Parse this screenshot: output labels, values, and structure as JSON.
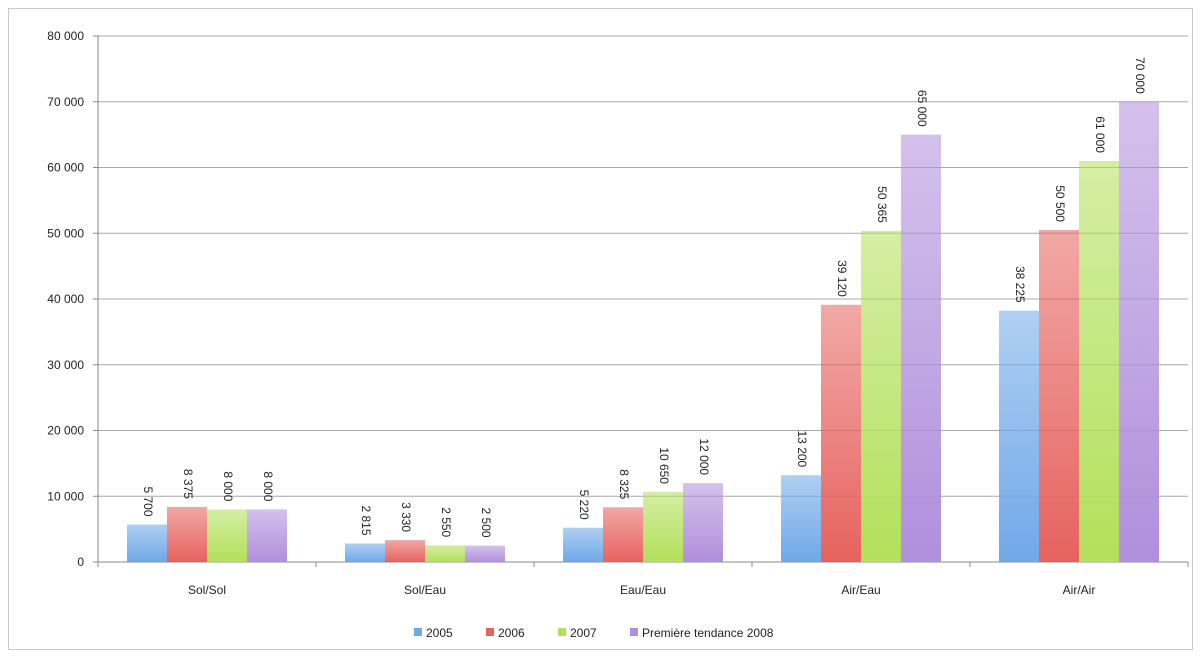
{
  "chart_data": {
    "type": "bar",
    "categories": [
      "Sol/Sol",
      "Sol/Eau",
      "Eau/Eau",
      "Air/Eau",
      "Air/Air"
    ],
    "series": [
      {
        "name": "2005",
        "values": [
          5700,
          2815,
          5220,
          13200,
          38225
        ],
        "labels": [
          "5 700",
          "2 815",
          "5 220",
          "13 200",
          "38 225"
        ],
        "color": "#6fa8e8"
      },
      {
        "name": "2006",
        "values": [
          8375,
          3330,
          8325,
          39120,
          50500
        ],
        "labels": [
          "8 375",
          "3 330",
          "8 325",
          "39 120",
          "50 500"
        ],
        "color": "#e6625e"
      },
      {
        "name": "2007",
        "values": [
          8000,
          2550,
          10650,
          50365,
          61000
        ],
        "labels": [
          "8 000",
          "2 550",
          "10 650",
          "50 365",
          "61 000"
        ],
        "color": "#b2e05a"
      },
      {
        "name": "Première tendance 2008",
        "values": [
          8000,
          2500,
          12000,
          65000,
          70000
        ],
        "labels": [
          "8 000",
          "2 500",
          "12 000",
          "65 000",
          "70 000"
        ],
        "color": "#b08fdc"
      }
    ],
    "y_ticks": [
      "0",
      "10 000",
      "20 000",
      "30 000",
      "40 000",
      "50 000",
      "60 000",
      "70 000",
      "80 000"
    ],
    "ylim": [
      0,
      80000
    ],
    "grid": true,
    "legend": "bottom"
  }
}
